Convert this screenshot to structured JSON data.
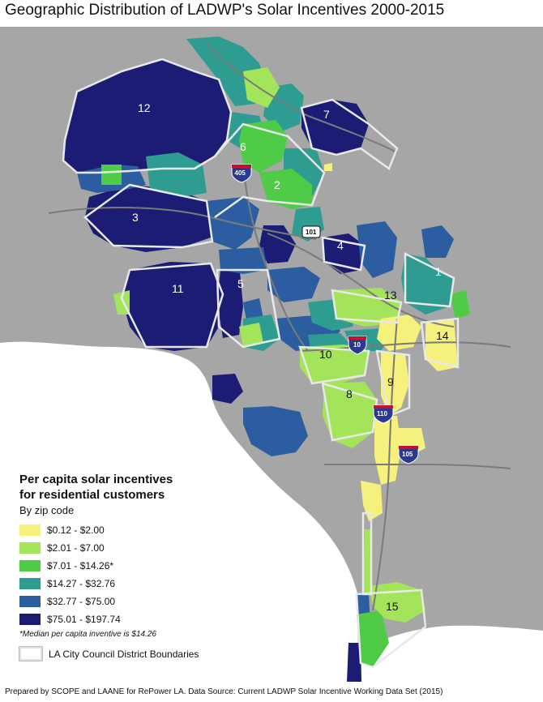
{
  "title": "Geographic Distribution of LADWP's Solar Incentives 2000-2015",
  "colors": {
    "background_land": "#a6a6a6",
    "water": "#ffffff",
    "district_boundary": "#e8e8e8",
    "freeway": "#7a7a7a"
  },
  "legend": {
    "title_line1": "Per capita solar incentives",
    "title_line2": "for residential customers",
    "subtitle": "By zip code",
    "classes": [
      {
        "label": "$0.12 - $2.00",
        "color": "#f6f07c"
      },
      {
        "label": "$2.01 - $7.00",
        "color": "#a4e45a"
      },
      {
        "label": "$7.01 - $14.26*",
        "color": "#4fcb48"
      },
      {
        "label": "$14.27 - $32.76",
        "color": "#2e9c90"
      },
      {
        "label": "$32.77 - $75.00",
        "color": "#2b5da0"
      },
      {
        "label": "$75.01 - $197.74",
        "color": "#1c1c74"
      }
    ],
    "note": "*Median per capita inventive is $14.26",
    "boundary_label": "LA City Council District Boundaries"
  },
  "districts": [
    {
      "id": "1",
      "label": "1"
    },
    {
      "id": "2",
      "label": "2"
    },
    {
      "id": "3",
      "label": "3"
    },
    {
      "id": "4",
      "label": "4"
    },
    {
      "id": "5",
      "label": "5"
    },
    {
      "id": "6",
      "label": "6"
    },
    {
      "id": "7",
      "label": "7"
    },
    {
      "id": "8",
      "label": "8"
    },
    {
      "id": "9",
      "label": "9"
    },
    {
      "id": "10",
      "label": "10"
    },
    {
      "id": "11",
      "label": "11"
    },
    {
      "id": "12",
      "label": "12"
    },
    {
      "id": "13",
      "label": "13"
    },
    {
      "id": "14",
      "label": "14"
    },
    {
      "id": "15",
      "label": "15"
    }
  ],
  "freeway_shields": [
    {
      "id": "405",
      "label": "405"
    },
    {
      "id": "101",
      "label": "101"
    },
    {
      "id": "10",
      "label": "10"
    },
    {
      "id": "110",
      "label": "110"
    },
    {
      "id": "105",
      "label": "105"
    }
  ],
  "footer": "Prepared by SCOPE and LAANE for RePower LA. Data Source: Current LADWP Solar Incentive Working Data Set (2015)"
}
